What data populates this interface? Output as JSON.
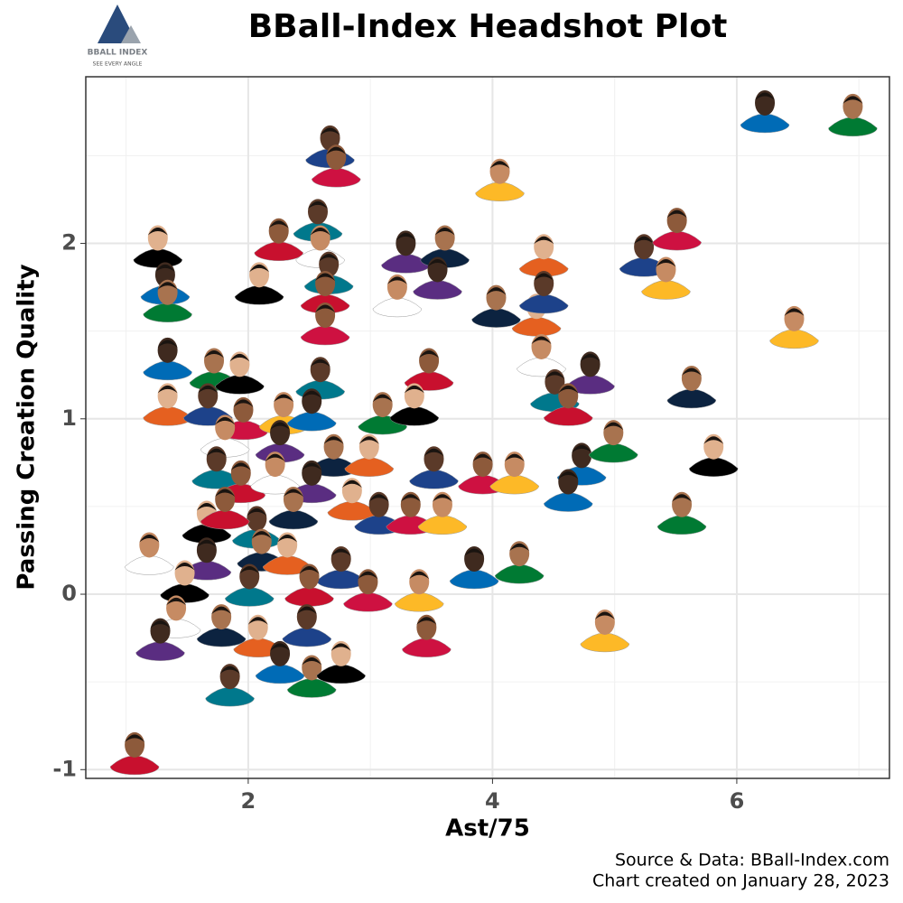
{
  "logo": {
    "name": "BBALL INDEX",
    "tagline": "SEE EVERY ANGLE"
  },
  "chart_data": {
    "type": "scatter",
    "title": "BBall-Index Headshot Plot",
    "x_label": "Ast/75",
    "y_label": "Passing Creation Quality",
    "xlim": [
      0.67,
      7.25
    ],
    "ylim": [
      -1.05,
      2.95
    ],
    "xticks": [
      2,
      4,
      6
    ],
    "yticks": [
      -1,
      0,
      1,
      2
    ],
    "grid": true,
    "caption": [
      "Source & Data: BBall-Index.com",
      "Chart created on January 28, 2023"
    ],
    "x": [
      2.67,
      2.72,
      4.06,
      6.23,
      6.95,
      1.26,
      2.57,
      2.25,
      2.59,
      3.29,
      3.61,
      4.42,
      5.24,
      5.51,
      5.42,
      1.32,
      1.34,
      2.09,
      2.66,
      2.63,
      3.22,
      3.55,
      4.03,
      4.36,
      4.42,
      2.63,
      6.47,
      1.34,
      1.72,
      1.93,
      2.59,
      3.48,
      4.4,
      4.8,
      5.63,
      1.34,
      1.67,
      1.96,
      2.29,
      2.52,
      3.1,
      3.36,
      4.51,
      4.62,
      1.81,
      2.26,
      2.7,
      2.99,
      3.52,
      3.92,
      4.18,
      4.73,
      4.99,
      5.81,
      1.74,
      1.94,
      2.22,
      2.52,
      2.37,
      2.85,
      3.07,
      3.33,
      3.59,
      4.62,
      5.55,
      1.66,
      2.07,
      1.81,
      1.19,
      1.66,
      2.11,
      2.32,
      2.76,
      2.98,
      3.4,
      3.85,
      4.22,
      1.48,
      2.01,
      2.5,
      1.41,
      1.28,
      1.78,
      2.08,
      2.48,
      3.46,
      4.92,
      2.26,
      2.52,
      2.76,
      1.85,
      1.07
    ],
    "y": [
      2.57,
      2.46,
      2.38,
      2.77,
      2.75,
      2.0,
      2.15,
      2.04,
      2.0,
      1.97,
      2.0,
      1.95,
      1.95,
      2.1,
      1.82,
      1.79,
      1.69,
      1.79,
      1.85,
      1.74,
      1.72,
      1.82,
      1.66,
      1.61,
      1.74,
      1.56,
      1.54,
      1.36,
      1.3,
      1.28,
      1.25,
      1.3,
      1.38,
      1.28,
      1.2,
      1.1,
      1.1,
      1.02,
      1.05,
      1.07,
      1.05,
      1.1,
      1.18,
      1.1,
      0.92,
      0.89,
      0.81,
      0.81,
      0.74,
      0.71,
      0.71,
      0.76,
      0.89,
      0.81,
      0.74,
      0.66,
      0.71,
      0.66,
      0.51,
      0.56,
      0.48,
      0.48,
      0.48,
      0.61,
      0.48,
      0.43,
      0.4,
      0.51,
      0.25,
      0.22,
      0.27,
      0.25,
      0.17,
      0.04,
      0.04,
      0.17,
      0.2,
      0.09,
      0.07,
      0.07,
      -0.11,
      -0.24,
      -0.16,
      -0.22,
      -0.16,
      -0.22,
      -0.19,
      -0.37,
      -0.45,
      -0.37,
      -0.5,
      -0.89
    ]
  }
}
